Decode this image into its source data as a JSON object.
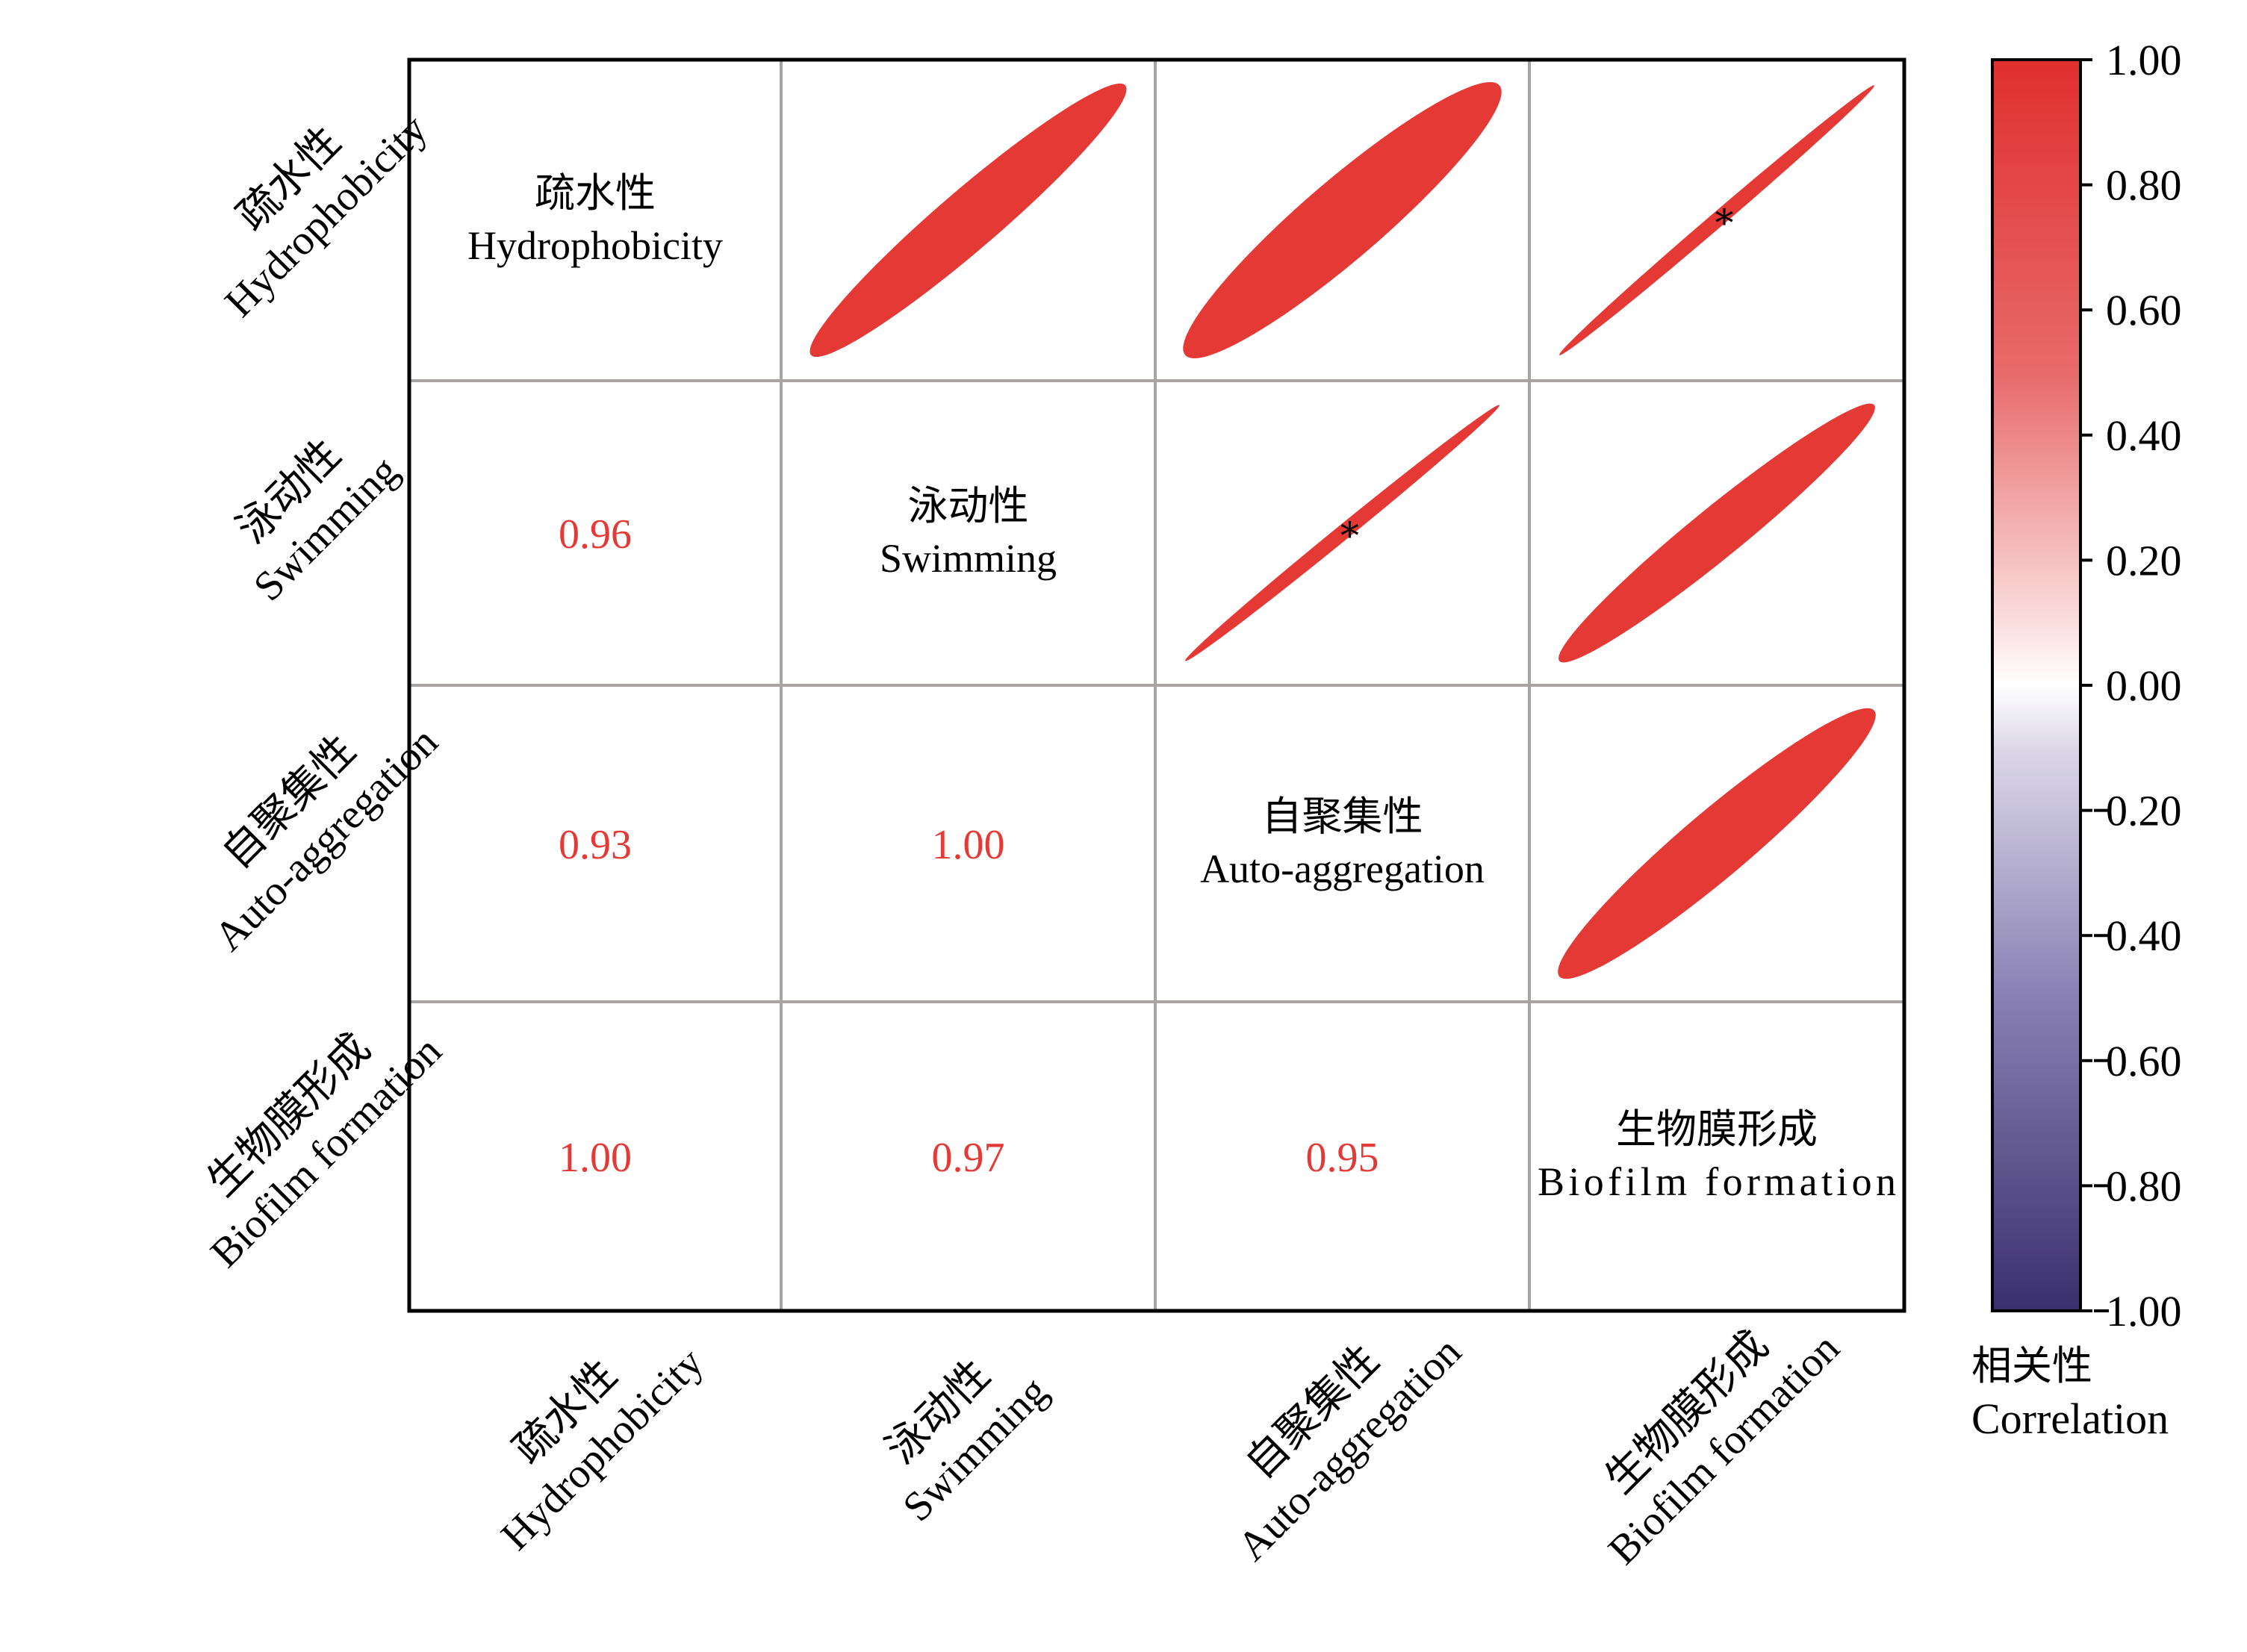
{
  "chart_data": {
    "type": "heatmap",
    "variables": [
      {
        "cn": "疏水性",
        "en": "Hydrophobicity"
      },
      {
        "cn": "泳动性",
        "en": "Swimming"
      },
      {
        "cn": "自聚集性",
        "en": "Auto-aggregation"
      },
      {
        "cn": "生物膜形成",
        "en": "Biofilm formation"
      }
    ],
    "matrix": [
      [
        1.0,
        0.96,
        0.93,
        1.0
      ],
      [
        0.96,
        1.0,
        1.0,
        0.97
      ],
      [
        0.93,
        1.0,
        1.0,
        0.95
      ],
      [
        1.0,
        0.97,
        0.95,
        1.0
      ]
    ],
    "lower_labels": [
      {
        "row": 1,
        "col": 0,
        "text": "0.96"
      },
      {
        "row": 2,
        "col": 0,
        "text": "0.93"
      },
      {
        "row": 2,
        "col": 1,
        "text": "1.00"
      },
      {
        "row": 3,
        "col": 0,
        "text": "1.00"
      },
      {
        "row": 3,
        "col": 1,
        "text": "0.97"
      },
      {
        "row": 3,
        "col": 2,
        "text": "0.95"
      }
    ],
    "upper_ellipses": [
      {
        "row": 0,
        "col": 1,
        "r": 0.96,
        "star": false
      },
      {
        "row": 0,
        "col": 2,
        "r": 0.93,
        "star": false
      },
      {
        "row": 0,
        "col": 3,
        "r": 1.0,
        "star": true
      },
      {
        "row": 1,
        "col": 2,
        "r": 1.0,
        "star": true
      },
      {
        "row": 1,
        "col": 3,
        "r": 0.97,
        "star": false
      },
      {
        "row": 2,
        "col": 3,
        "r": 0.95,
        "star": false
      }
    ],
    "star_symbol": "*",
    "colorbar": {
      "ticks": [
        "1.00",
        "0.80",
        "0.60",
        "0.40",
        "0.20",
        "0.00",
        "0.20",
        "0.40",
        "0.60",
        "0.80",
        "1.00"
      ],
      "title_cn": "相关性",
      "title_en": "Correlation",
      "range": [
        -1,
        1
      ],
      "colors": {
        "positive": "#e53935",
        "zero": "#ffffff",
        "negative": "#3a2f6e"
      }
    },
    "label_color": "#e53935",
    "grid_color": "#a9a4a4"
  }
}
